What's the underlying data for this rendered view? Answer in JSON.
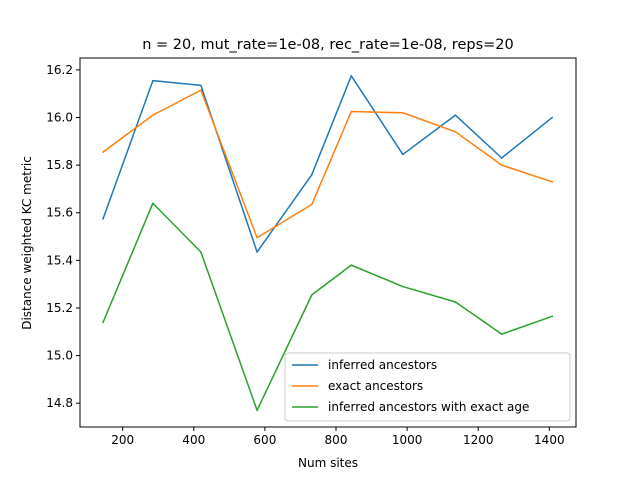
{
  "chart_data": {
    "type": "line",
    "title": "n = 20, mut_rate=1e-08, rec_rate=1e-08, reps=20",
    "xlabel": "Num sites",
    "ylabel": "Distance weighted KC metric",
    "xlim": [
      80,
      1475
    ],
    "ylim": [
      14.7,
      16.25
    ],
    "xticks": [
      200,
      400,
      600,
      800,
      1000,
      1200,
      1400
    ],
    "yticks": [
      14.8,
      15.0,
      15.2,
      15.4,
      15.6,
      15.8,
      16.0,
      16.2
    ],
    "xtick_labels": [
      "200",
      "400",
      "600",
      "800",
      "1000",
      "1200",
      "1400"
    ],
    "ytick_labels": [
      "14.8",
      "15.0",
      "15.2",
      "15.4",
      "15.6",
      "15.8",
      "16.0",
      "16.2"
    ],
    "x": [
      145,
      285,
      420,
      578,
      732,
      843,
      988,
      1136,
      1266,
      1408
    ],
    "series": [
      {
        "name": "inferred ancestors",
        "color": "#1f77b4",
        "values": [
          15.575,
          16.155,
          16.135,
          15.435,
          15.76,
          16.175,
          15.845,
          16.01,
          15.83,
          16.0
        ]
      },
      {
        "name": "exact ancestors",
        "color": "#ff7f0e",
        "values": [
          15.855,
          16.01,
          16.115,
          15.495,
          15.635,
          16.025,
          16.02,
          15.94,
          15.8,
          15.73
        ]
      },
      {
        "name": "inferred ancestors with exact age",
        "color": "#2ca02c",
        "values": [
          15.14,
          15.64,
          15.435,
          14.77,
          15.255,
          15.38,
          15.29,
          15.225,
          15.09,
          15.165
        ]
      }
    ],
    "legend_position": "lower-right",
    "grid": false
  }
}
